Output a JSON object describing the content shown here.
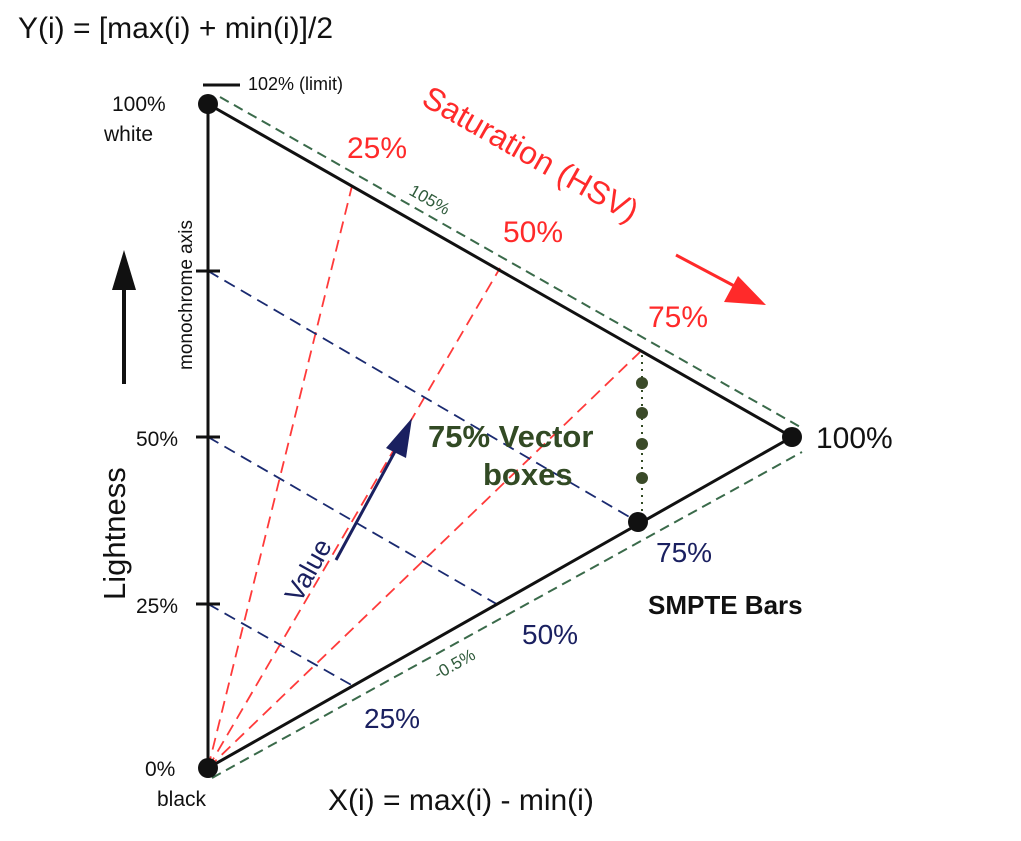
{
  "title_top": "Y(i) = [max(i) + min(i)]/2",
  "title_bottom": "X(i) = max(i) - min(i)",
  "vertical_axis": {
    "label": "Lightness",
    "axis_name": "monochrome axis",
    "limit_label": "102% (limit)",
    "ticks": {
      "top_pct": "100%",
      "top_word": "white",
      "mid": "50%",
      "quarter": "25%",
      "bottom_pct": "0%",
      "bottom_word": "black"
    }
  },
  "right_vertex_label": "100%",
  "saturation": {
    "label": "Saturation (HSV)",
    "levels": [
      "25%",
      "50%",
      "75%"
    ]
  },
  "value": {
    "label": "Value",
    "levels": [
      "25%",
      "50%",
      "75%"
    ]
  },
  "gamut_margins": {
    "upper": "105%",
    "lower": "-0.5%"
  },
  "vector_boxes": {
    "line1": "75% Vector",
    "line2": "boxes"
  },
  "smpte_label": "SMPTE Bars",
  "colors": {
    "saturation_red": "#ff2a2a",
    "value_navy": "#1a2060",
    "margin_green": "#3a6a4a",
    "vector_green": "#324a24"
  }
}
